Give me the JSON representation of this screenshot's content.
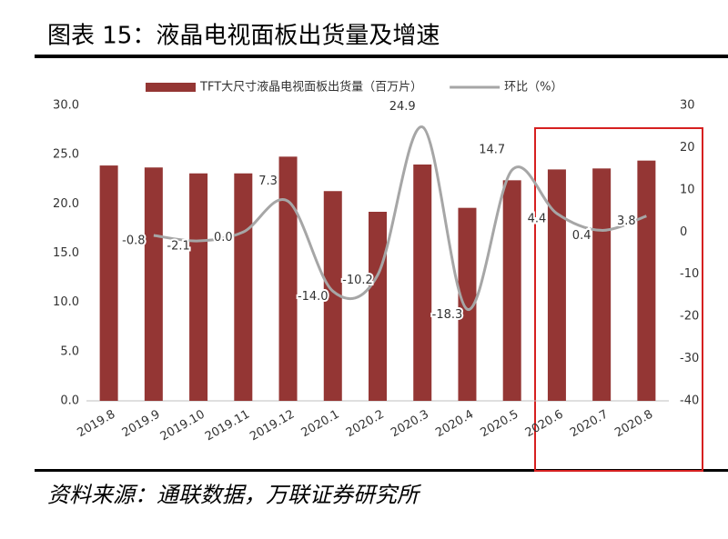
{
  "title": "图表 15：液晶电视面板出货量及增速",
  "source": "资料来源：通联数据，万联证券研究所",
  "chart_data": {
    "type": "bar-line",
    "categories": [
      "2019.8",
      "2019.9",
      "2019.10",
      "2019.11",
      "2019.12",
      "2020.1",
      "2020.2",
      "2020.3",
      "2020.4",
      "2020.5",
      "2020.6",
      "2020.7",
      "2020.8"
    ],
    "series": [
      {
        "name": "TFT大尺寸液晶电视面板出货量（百万片）",
        "color": "#943634",
        "type": "bar",
        "values": [
          23.9,
          23.7,
          23.1,
          23.1,
          24.8,
          21.3,
          19.2,
          24.0,
          19.6,
          22.4,
          23.5,
          23.6,
          24.4
        ]
      },
      {
        "name": "环比（%）",
        "color": "#a6a6a6",
        "type": "line",
        "axis": "y2",
        "values": [
          null,
          -0.8,
          -2.1,
          0.0,
          7.3,
          -14.0,
          -10.2,
          24.9,
          -18.3,
          14.7,
          4.4,
          0.4,
          3.8
        ],
        "value_labels": [
          null,
          "-0.8",
          "-2.1",
          "0.0",
          "7.3",
          "-14.0",
          "-10.2",
          "24.9",
          "-18.3",
          "14.7",
          "4.4",
          "0.4",
          "3.8"
        ]
      }
    ],
    "ylim": [
      0,
      30
    ],
    "yticks": [
      {
        "value": 0,
        "label": "0.0"
      },
      {
        "value": 5,
        "label": "5.0"
      },
      {
        "value": 10,
        "label": "10.0"
      },
      {
        "value": 15,
        "label": "15.0"
      },
      {
        "value": 20,
        "label": "20.0"
      },
      {
        "value": 25,
        "label": "25.0"
      },
      {
        "value": 30,
        "label": "30.0"
      }
    ],
    "y2lim": [
      -40,
      30
    ],
    "y2ticks": [
      -40,
      -30,
      -20,
      -10,
      0,
      10,
      20,
      30
    ],
    "legend": "top"
  }
}
